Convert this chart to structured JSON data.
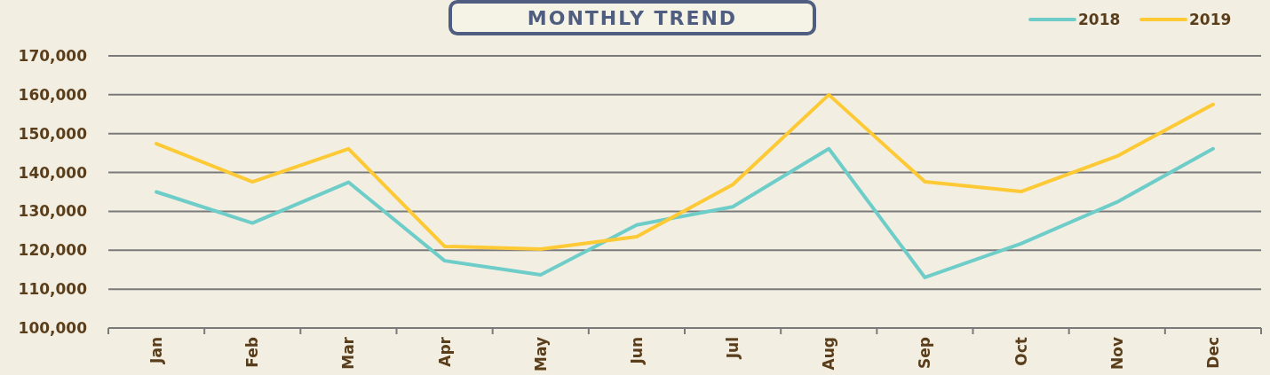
{
  "chart_data": {
    "type": "line",
    "title": "MONTHLY TREND",
    "categories": [
      "Jan",
      "Feb",
      "Mar",
      "Apr",
      "May",
      "Jun",
      "Jul",
      "Aug",
      "Sep",
      "Oct",
      "Nov",
      "Dec"
    ],
    "series": [
      {
        "name": "2018",
        "color": "#6ecdc8",
        "values": [
          135000,
          127000,
          137500,
          117300,
          113700,
          126500,
          131200,
          146100,
          113000,
          121700,
          132400,
          146100
        ]
      },
      {
        "name": "2019",
        "color": "#fdc934",
        "values": [
          147400,
          137600,
          146100,
          121000,
          120300,
          123500,
          136900,
          160000,
          137600,
          135100,
          144200,
          157500
        ]
      }
    ],
    "ylim": [
      100000,
      170000
    ],
    "yticks": [
      {
        "value": 100000,
        "label": "100,000"
      },
      {
        "value": 110000,
        "label": "110,000"
      },
      {
        "value": 120000,
        "label": "120,000"
      },
      {
        "value": 130000,
        "label": "130,000"
      },
      {
        "value": 140000,
        "label": "140,000"
      },
      {
        "value": 150000,
        "label": "150,000"
      },
      {
        "value": 160000,
        "label": "160,000"
      },
      {
        "value": 170000,
        "label": "170,000"
      }
    ],
    "grid": "y",
    "legend": "top right",
    "marker": "none",
    "line_style": "solid"
  }
}
